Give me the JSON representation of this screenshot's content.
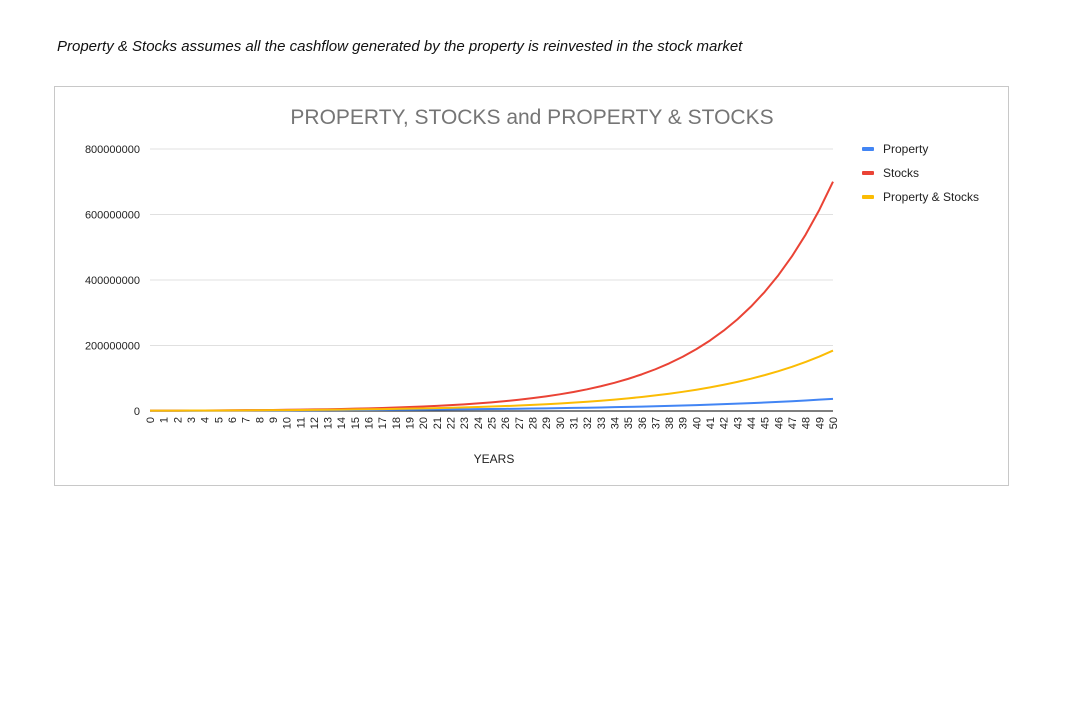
{
  "caption": "Property & Stocks assumes all the cashflow generated by the property is reinvested in the stock market",
  "chart_data": {
    "type": "line",
    "title": "PROPERTY, STOCKS and PROPERTY & STOCKS",
    "xlabel": "YEARS",
    "ylabel": "",
    "ylim": [
      0,
      800000000
    ],
    "yticks": [
      "0",
      "200000000",
      "400000000",
      "600000000",
      "800000000"
    ],
    "grid": true,
    "legend_position": "right",
    "x": [
      0,
      1,
      2,
      3,
      4,
      5,
      6,
      7,
      8,
      9,
      10,
      11,
      12,
      13,
      14,
      15,
      16,
      17,
      18,
      19,
      20,
      21,
      22,
      23,
      24,
      25,
      26,
      27,
      28,
      29,
      30,
      31,
      32,
      33,
      34,
      35,
      36,
      37,
      38,
      39,
      40,
      41,
      42,
      43,
      44,
      45,
      46,
      47,
      48,
      49,
      50
    ],
    "series": [
      {
        "name": "Property",
        "color": "#4285f4",
        "values": [
          1000000,
          1075000,
          1155600,
          1242300,
          1335500,
          1435600,
          1543300,
          1659100,
          1783500,
          1917300,
          2061100,
          2215700,
          2381900,
          2560500,
          2752500,
          2958900,
          3180900,
          3419400,
          3675900,
          3951600,
          4247900,
          4566500,
          4909000,
          5277200,
          5673000,
          6098500,
          6555800,
          7047500,
          7576100,
          8144300,
          8755100,
          9411700,
          10117600,
          10876400,
          11692100,
          12569000,
          13511700,
          14525100,
          15614400,
          16785500,
          18044400,
          19397800,
          20852600,
          22416500,
          24097700,
          25905000,
          27847900,
          29936500,
          32181700,
          34595400,
          37190100
        ]
      },
      {
        "name": "Stocks",
        "color": "#ea4335",
        "values": [
          1000000,
          1140000,
          1299600,
          1481500,
          1689000,
          1925400,
          2195000,
          2502300,
          2852600,
          3251900,
          3707200,
          4226200,
          4817900,
          5492400,
          6261300,
          7137900,
          8137200,
          9276400,
          10575100,
          12055600,
          13743500,
          15667500,
          17861000,
          20361500,
          23212100,
          26461800,
          30166500,
          34389800,
          39204300,
          44692900,
          50949900,
          58083000,
          66214600,
          75484700,
          86052600,
          98100000,
          111834000,
          127490800,
          145339500,
          165686900,
          188883100,
          215327000,
          245472700,
          279838900,
          319016300,
          363678600,
          414593600,
          472636800,
          538806000,
          614238800,
          700232200
        ]
      },
      {
        "name": "Property & Stocks",
        "color": "#fbbc04",
        "values": [
          1000000,
          1110000,
          1232100,
          1367600,
          1518100,
          1685100,
          1870400,
          2076200,
          2304600,
          2558000,
          2839400,
          3151800,
          3498400,
          3883300,
          4310400,
          4784600,
          5310900,
          5895000,
          6543500,
          7263300,
          8062300,
          8949100,
          9933600,
          11026300,
          12239100,
          13585400,
          15079800,
          16738500,
          18579800,
          20623500,
          22892200,
          25410300,
          28205400,
          31308000,
          34751900,
          38574600,
          42817800,
          47527800,
          52755800,
          58559000,
          65000500,
          72150600,
          80087100,
          88896700,
          98675300,
          109529500,
          121577800,
          134951400,
          149796100,
          166273600,
          184563700
        ]
      }
    ]
  }
}
